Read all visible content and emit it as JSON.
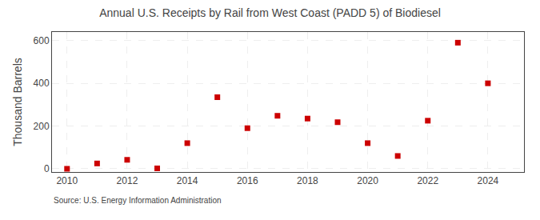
{
  "chart_data": {
    "type": "scatter",
    "title": "Annual U.S. Receipts by Rail from West Coast (PADD 5) of Biodiesel",
    "ylabel": "Thousand Barrels",
    "annotations": [
      "Source: U.S. Energy Information Administration"
    ],
    "x": [
      2010,
      2011,
      2012,
      2013,
      2014,
      2015,
      2016,
      2017,
      2018,
      2019,
      2020,
      2021,
      2022,
      2023,
      2024
    ],
    "values": [
      0,
      25,
      42,
      2,
      120,
      335,
      190,
      248,
      235,
      218,
      120,
      60,
      225,
      590,
      400
    ],
    "color": "#cc0000",
    "marker": "square",
    "xlim": [
      2009.5,
      2025.2
    ],
    "ylim": [
      -15,
      640
    ],
    "xticks": [
      2010,
      2012,
      2014,
      2016,
      2018,
      2020,
      2022,
      2024
    ],
    "yticks": [
      0,
      200,
      400,
      600
    ],
    "grid": true
  }
}
